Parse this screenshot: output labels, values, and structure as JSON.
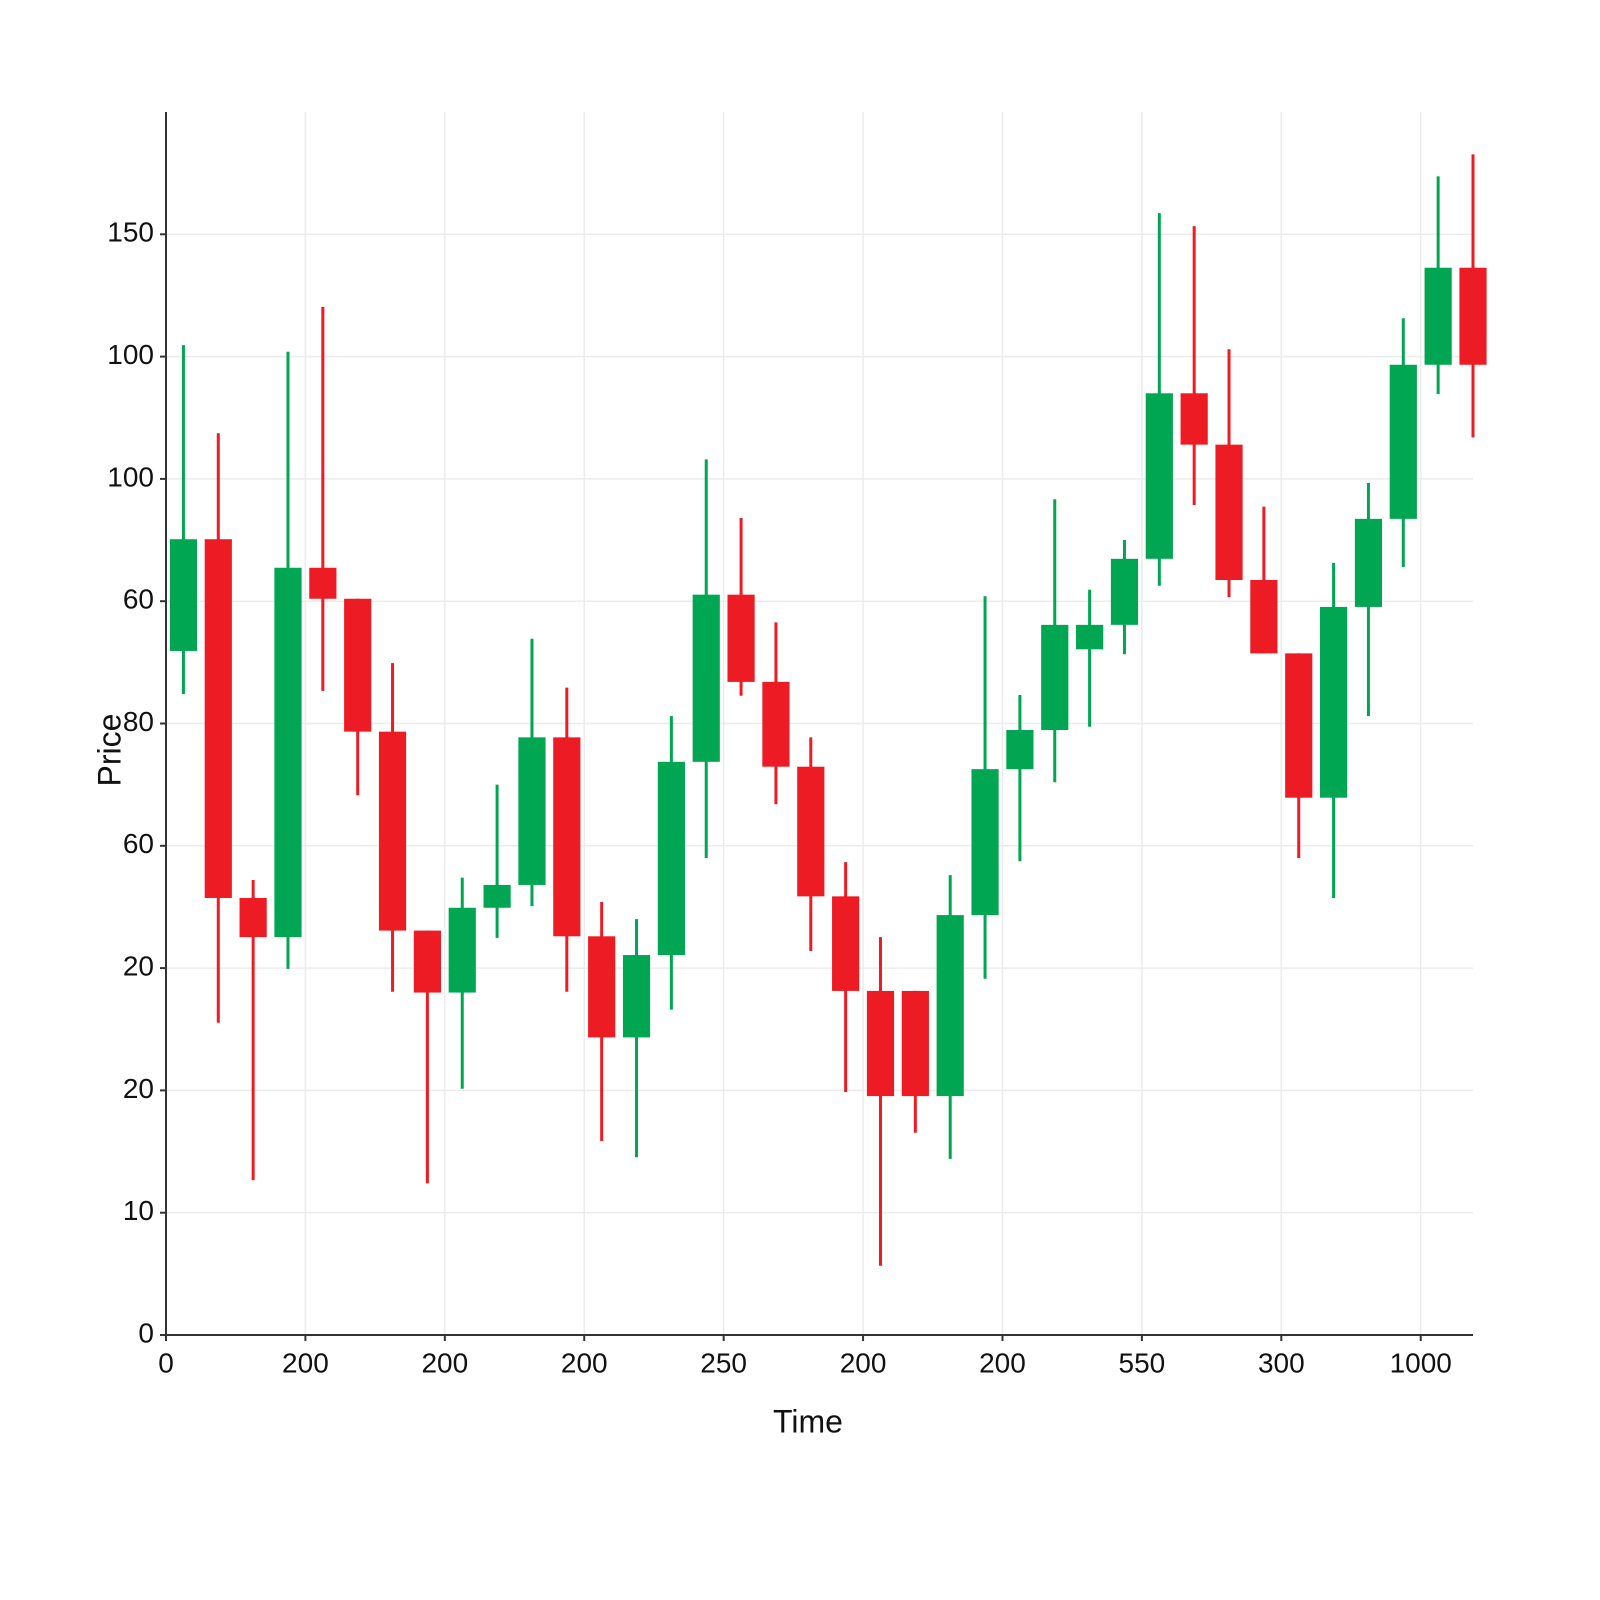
{
  "chart_data": {
    "type": "candlestick",
    "x_label": "Time",
    "y_label": "Price",
    "up_color": "#00a651",
    "down_color": "#ed1c24",
    "grid": true,
    "xlim": [
      0,
      37.5
    ],
    "xticks": [
      0,
      {
        "value": 4,
        "label": "200"
      },
      {
        "value": 8,
        "label": "200"
      },
      {
        "value": 12,
        "label": "200"
      },
      {
        "value": 16,
        "label": "250"
      },
      {
        "value": 20,
        "label": "200"
      },
      {
        "value": 24,
        "label": "200"
      },
      {
        "value": 28,
        "label": "550"
      },
      {
        "value": 32,
        "label": "300"
      },
      {
        "value": 36,
        "label": "1000"
      }
    ],
    "ylim": [
      0,
      150
    ],
    "yticks": [
      0,
      {
        "value": 15,
        "label": "10"
      },
      {
        "value": 30,
        "label": "20"
      },
      {
        "value": 45,
        "label": "20"
      },
      {
        "value": 60,
        "label": "60"
      },
      {
        "value": 75,
        "label": "80"
      },
      {
        "value": 90,
        "label": "60"
      },
      {
        "value": 105,
        "label": "100"
      },
      {
        "value": 120,
        "label": "100"
      },
      {
        "value": 135,
        "label": "150"
      }
    ],
    "x": [
      0.5,
      1.5,
      2.5,
      3.5,
      4.5,
      5.5,
      6.5,
      7.5,
      8.5,
      9.5,
      10.5,
      11.5,
      12.5,
      13.5,
      14.5,
      15.5,
      16.5,
      17.5,
      18.5,
      19.5,
      20.5,
      21.5,
      22.5,
      23.5,
      24.5,
      25.5,
      26.5,
      27.5,
      28.5,
      29.5,
      30.5,
      31.5,
      32.5,
      33.5,
      34.5,
      35.5,
      36.5,
      37.5
    ],
    "open": [
      83.9,
      97.6,
      53.6,
      48.8,
      94.1,
      90.3,
      74.0,
      49.6,
      42.0,
      52.4,
      55.2,
      73.3,
      48.9,
      36.5,
      46.6,
      70.3,
      90.8,
      80.1,
      69.7,
      53.8,
      42.2,
      42.2,
      29.3,
      51.5,
      69.4,
      74.2,
      84.1,
      87.1,
      95.2,
      115.5,
      109.2,
      92.6,
      83.6,
      65.9,
      89.3,
      100.1,
      119.0,
      130.9
    ],
    "high": [
      121.4,
      110.6,
      55.8,
      120.6,
      126.1,
      90.3,
      82.4,
      49.6,
      56.1,
      67.5,
      85.4,
      79.4,
      53.1,
      51.0,
      75.9,
      107.4,
      100.2,
      87.4,
      73.3,
      58.0,
      48.8,
      42.2,
      56.4,
      90.6,
      78.5,
      102.5,
      91.4,
      97.5,
      137.6,
      136.0,
      120.9,
      101.6,
      83.6,
      94.7,
      104.5,
      124.7,
      142.1,
      144.8
    ],
    "low": [
      78.6,
      38.3,
      19.0,
      44.9,
      79.0,
      66.2,
      42.1,
      18.6,
      30.2,
      48.7,
      52.6,
      42.1,
      23.8,
      21.8,
      39.9,
      58.5,
      78.4,
      65.1,
      47.1,
      29.8,
      8.5,
      24.8,
      21.6,
      43.7,
      58.1,
      67.8,
      74.6,
      83.5,
      91.9,
      101.8,
      90.5,
      83.6,
      58.5,
      53.6,
      75.9,
      94.2,
      115.4,
      110.1
    ],
    "close": [
      97.6,
      53.6,
      48.8,
      94.1,
      90.3,
      74.0,
      49.6,
      42.0,
      52.4,
      55.2,
      73.3,
      48.9,
      36.5,
      46.6,
      70.3,
      90.8,
      80.1,
      69.7,
      53.8,
      42.2,
      29.3,
      29.3,
      51.5,
      69.4,
      74.2,
      87.1,
      87.1,
      95.2,
      115.5,
      109.2,
      92.6,
      83.6,
      65.9,
      89.3,
      100.1,
      119.0,
      130.9,
      119.0
    ]
  }
}
